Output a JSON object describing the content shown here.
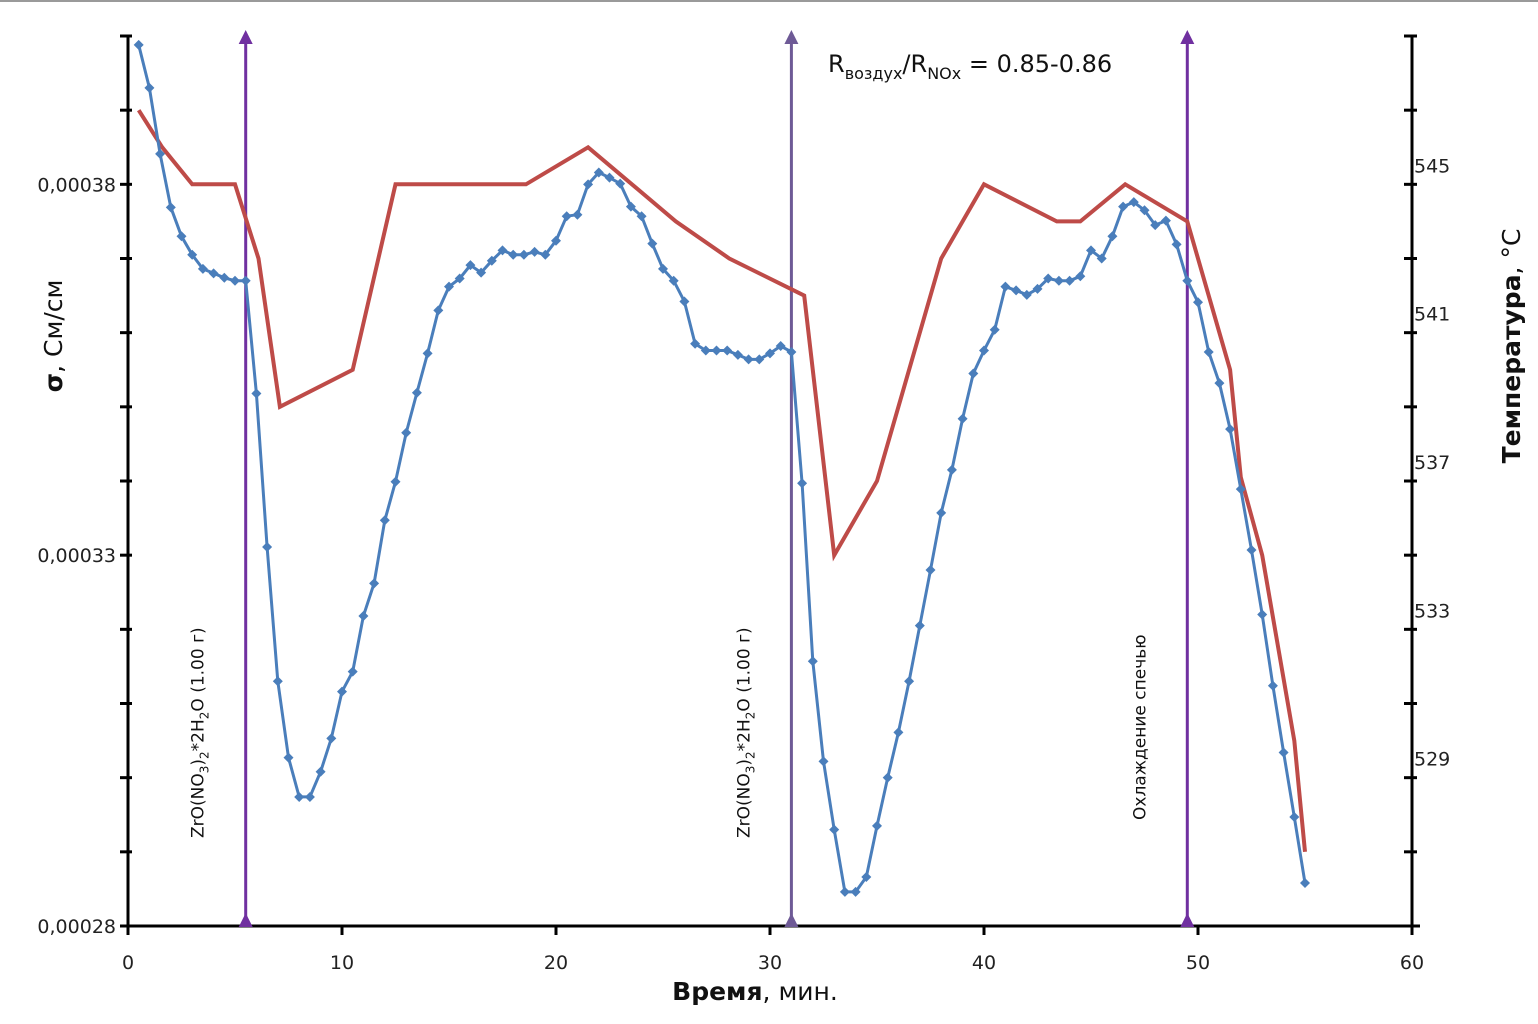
{
  "chart_data": {
    "type": "line",
    "title": "",
    "xlabel": {
      "bold": "Время",
      "rest": ", мин."
    },
    "ylabel": {
      "bold": "σ",
      "rest": ", См/см"
    },
    "y2label": {
      "bold": "Температура",
      "rest": ", °C"
    },
    "xlim": [
      0,
      60
    ],
    "ylim": [
      0.00028,
      0.0004
    ],
    "y2lim": [
      525,
      549
    ],
    "grid": false,
    "legend": "none",
    "x_ticks": [
      0,
      10,
      20,
      30,
      40,
      50,
      60
    ],
    "x_tick_labels": [
      "0",
      "10",
      "20",
      "30",
      "40",
      "50",
      "60"
    ],
    "y_ticks": [
      0.00028,
      0.00029,
      0.0003,
      0.00031,
      0.00032,
      0.00033,
      0.00034,
      0.00035,
      0.00036,
      0.00037,
      0.00038,
      0.00039,
      0.0004
    ],
    "y_tick_labels": [
      {
        "value": 0.00028,
        "label": "0,00028"
      },
      {
        "value": 0.00033,
        "label": "0,00033"
      },
      {
        "value": 0.00038,
        "label": "0,00038"
      }
    ],
    "y2_ticks": [
      525,
      527,
      529,
      531,
      533,
      535,
      537,
      539,
      541,
      543,
      545,
      547,
      549
    ],
    "y2_tick_labels": [
      {
        "value": 529,
        "label": "529"
      },
      {
        "value": 533,
        "label": "533"
      },
      {
        "value": 537,
        "label": "537"
      },
      {
        "value": 541,
        "label": "541"
      },
      {
        "value": 545,
        "label": "545"
      }
    ],
    "series": [
      {
        "name": "conductivity",
        "axis": "left",
        "color": "#4a7ebb",
        "marker": "diamond",
        "x_start": 0.5,
        "x_step": 0.5,
        "values_e5": [
          39.88,
          39.3,
          38.41,
          37.69,
          37.3,
          37.05,
          36.86,
          36.8,
          36.74,
          36.7,
          36.7,
          35.18,
          33.11,
          31.3,
          30.27,
          29.74,
          29.74,
          30.08,
          30.53,
          31.16,
          31.43,
          32.18,
          32.62,
          33.47,
          33.99,
          34.65,
          35.19,
          35.72,
          36.3,
          36.62,
          36.73,
          36.91,
          36.81,
          36.97,
          37.11,
          37.05,
          37.05,
          37.09,
          37.05,
          37.24,
          37.57,
          37.59,
          38.0,
          38.16,
          38.09,
          38.01,
          37.7,
          37.57,
          37.2,
          36.86,
          36.7,
          36.42,
          35.85,
          35.76,
          35.76,
          35.76,
          35.7,
          35.64,
          35.64,
          35.72,
          35.82,
          35.74,
          33.97,
          31.57,
          30.22,
          29.3,
          28.46,
          28.46,
          28.66,
          29.35,
          30.0,
          30.61,
          31.3,
          32.05,
          32.8,
          33.57,
          34.15,
          34.84,
          35.45,
          35.76,
          36.04,
          36.62,
          36.57,
          36.51,
          36.59,
          36.73,
          36.7,
          36.7,
          36.76,
          37.11,
          37.0,
          37.3,
          37.7,
          37.76,
          37.65,
          37.45,
          37.51,
          37.19,
          36.7,
          36.41,
          35.74,
          35.32,
          34.7,
          33.89,
          33.07,
          32.2,
          31.24,
          30.34,
          29.47,
          28.58
        ],
        "values_unit": "1e-5 См/см"
      },
      {
        "name": "temperature",
        "axis": "right",
        "color": "#be4b48",
        "marker": "none",
        "points": [
          [
            0.5,
            547.0
          ],
          [
            1.6,
            546.0
          ],
          [
            3.0,
            545.0
          ],
          [
            5.0,
            545.0
          ],
          [
            6.1,
            543.0
          ],
          [
            7.1,
            539.0
          ],
          [
            10.5,
            540.0
          ],
          [
            12.5,
            545.0
          ],
          [
            18.6,
            545.0
          ],
          [
            21.5,
            546.0
          ],
          [
            25.6,
            544.0
          ],
          [
            28.1,
            543.0
          ],
          [
            30.9,
            542.2
          ],
          [
            31.6,
            542.0
          ],
          [
            33.0,
            535.0
          ],
          [
            35.0,
            537.0
          ],
          [
            38.0,
            543.0
          ],
          [
            40.0,
            545.0
          ],
          [
            43.4,
            544.0
          ],
          [
            44.5,
            544.0
          ],
          [
            46.6,
            545.0
          ],
          [
            49.5,
            544.0
          ],
          [
            51.5,
            540.0
          ],
          [
            52.0,
            537.1
          ],
          [
            53.0,
            535.0
          ],
          [
            54.5,
            530.0
          ],
          [
            55.0,
            527.0
          ]
        ]
      }
    ],
    "events": [
      {
        "x": 5.5,
        "label_parts": [
          "ZrO(NO",
          "3",
          ")",
          "2",
          "*2H",
          "2",
          "O (1.00 г)"
        ],
        "color": "#7030a0"
      },
      {
        "x": 31.0,
        "label_parts": [
          "ZrO(NO",
          "3",
          ")",
          "2",
          "*2H",
          "2",
          "O (1.00 г)"
        ],
        "color": "#6e5a96"
      },
      {
        "x": 49.5,
        "label_parts": [
          "Охлаждение спечью"
        ],
        "color": "#7030a0"
      }
    ],
    "annotation": {
      "r1": "R",
      "r1_sub": "воздух",
      "slash": "/",
      "r2": "R",
      "r2_sub": "NOx",
      "value": " = 0.85-0.86"
    }
  }
}
